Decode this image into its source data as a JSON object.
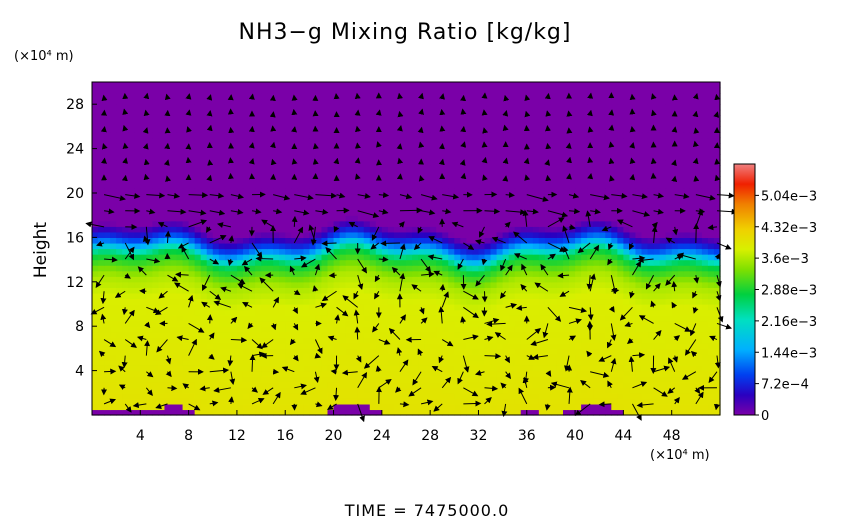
{
  "chart_data": {
    "type": "heatmap",
    "title": "NH3−g Mixing Ratio [kg/kg]",
    "xlabel": "",
    "x_unit": "(×10⁴ m)",
    "ylabel": "Height",
    "y_unit": "(×10⁴ m)",
    "xlim": [
      0,
      52
    ],
    "ylim": [
      0,
      30
    ],
    "x_ticks": [
      "4",
      "8",
      "12",
      "16",
      "20",
      "24",
      "28",
      "32",
      "36",
      "40",
      "44",
      "48"
    ],
    "y_ticks": [
      "4",
      "8",
      "12",
      "16",
      "20",
      "24",
      "28"
    ],
    "colorbar": {
      "min": 0,
      "max": 0.00576,
      "ticks": [
        "0",
        "7.2e−4",
        "1.44e−3",
        "2.16e−3",
        "2.88e−3",
        "3.6e−3",
        "4.32e−3",
        "5.04e−3"
      ],
      "colormap": [
        "#7a00a8",
        "#2a00c0",
        "#0040f0",
        "#00b0ff",
        "#00e0c0",
        "#00d040",
        "#80e000",
        "#d8f000",
        "#f0d000",
        "#f08000",
        "#f02000",
        "#f08080"
      ]
    },
    "field_profile": [
      {
        "height": 0,
        "value": 0.0039
      },
      {
        "height": 10,
        "value": 0.0037
      },
      {
        "height": 12,
        "value": 0.0034
      },
      {
        "height": 14,
        "value": 0.0026
      },
      {
        "height": 15,
        "value": 0.0015
      },
      {
        "height": 16,
        "value": 0.0006
      },
      {
        "height": 16.8,
        "value": 0
      },
      {
        "height": 30,
        "value": 0
      }
    ],
    "vectors": "wind vectors overlaid",
    "footer": "TIME  =  7475000.0"
  }
}
